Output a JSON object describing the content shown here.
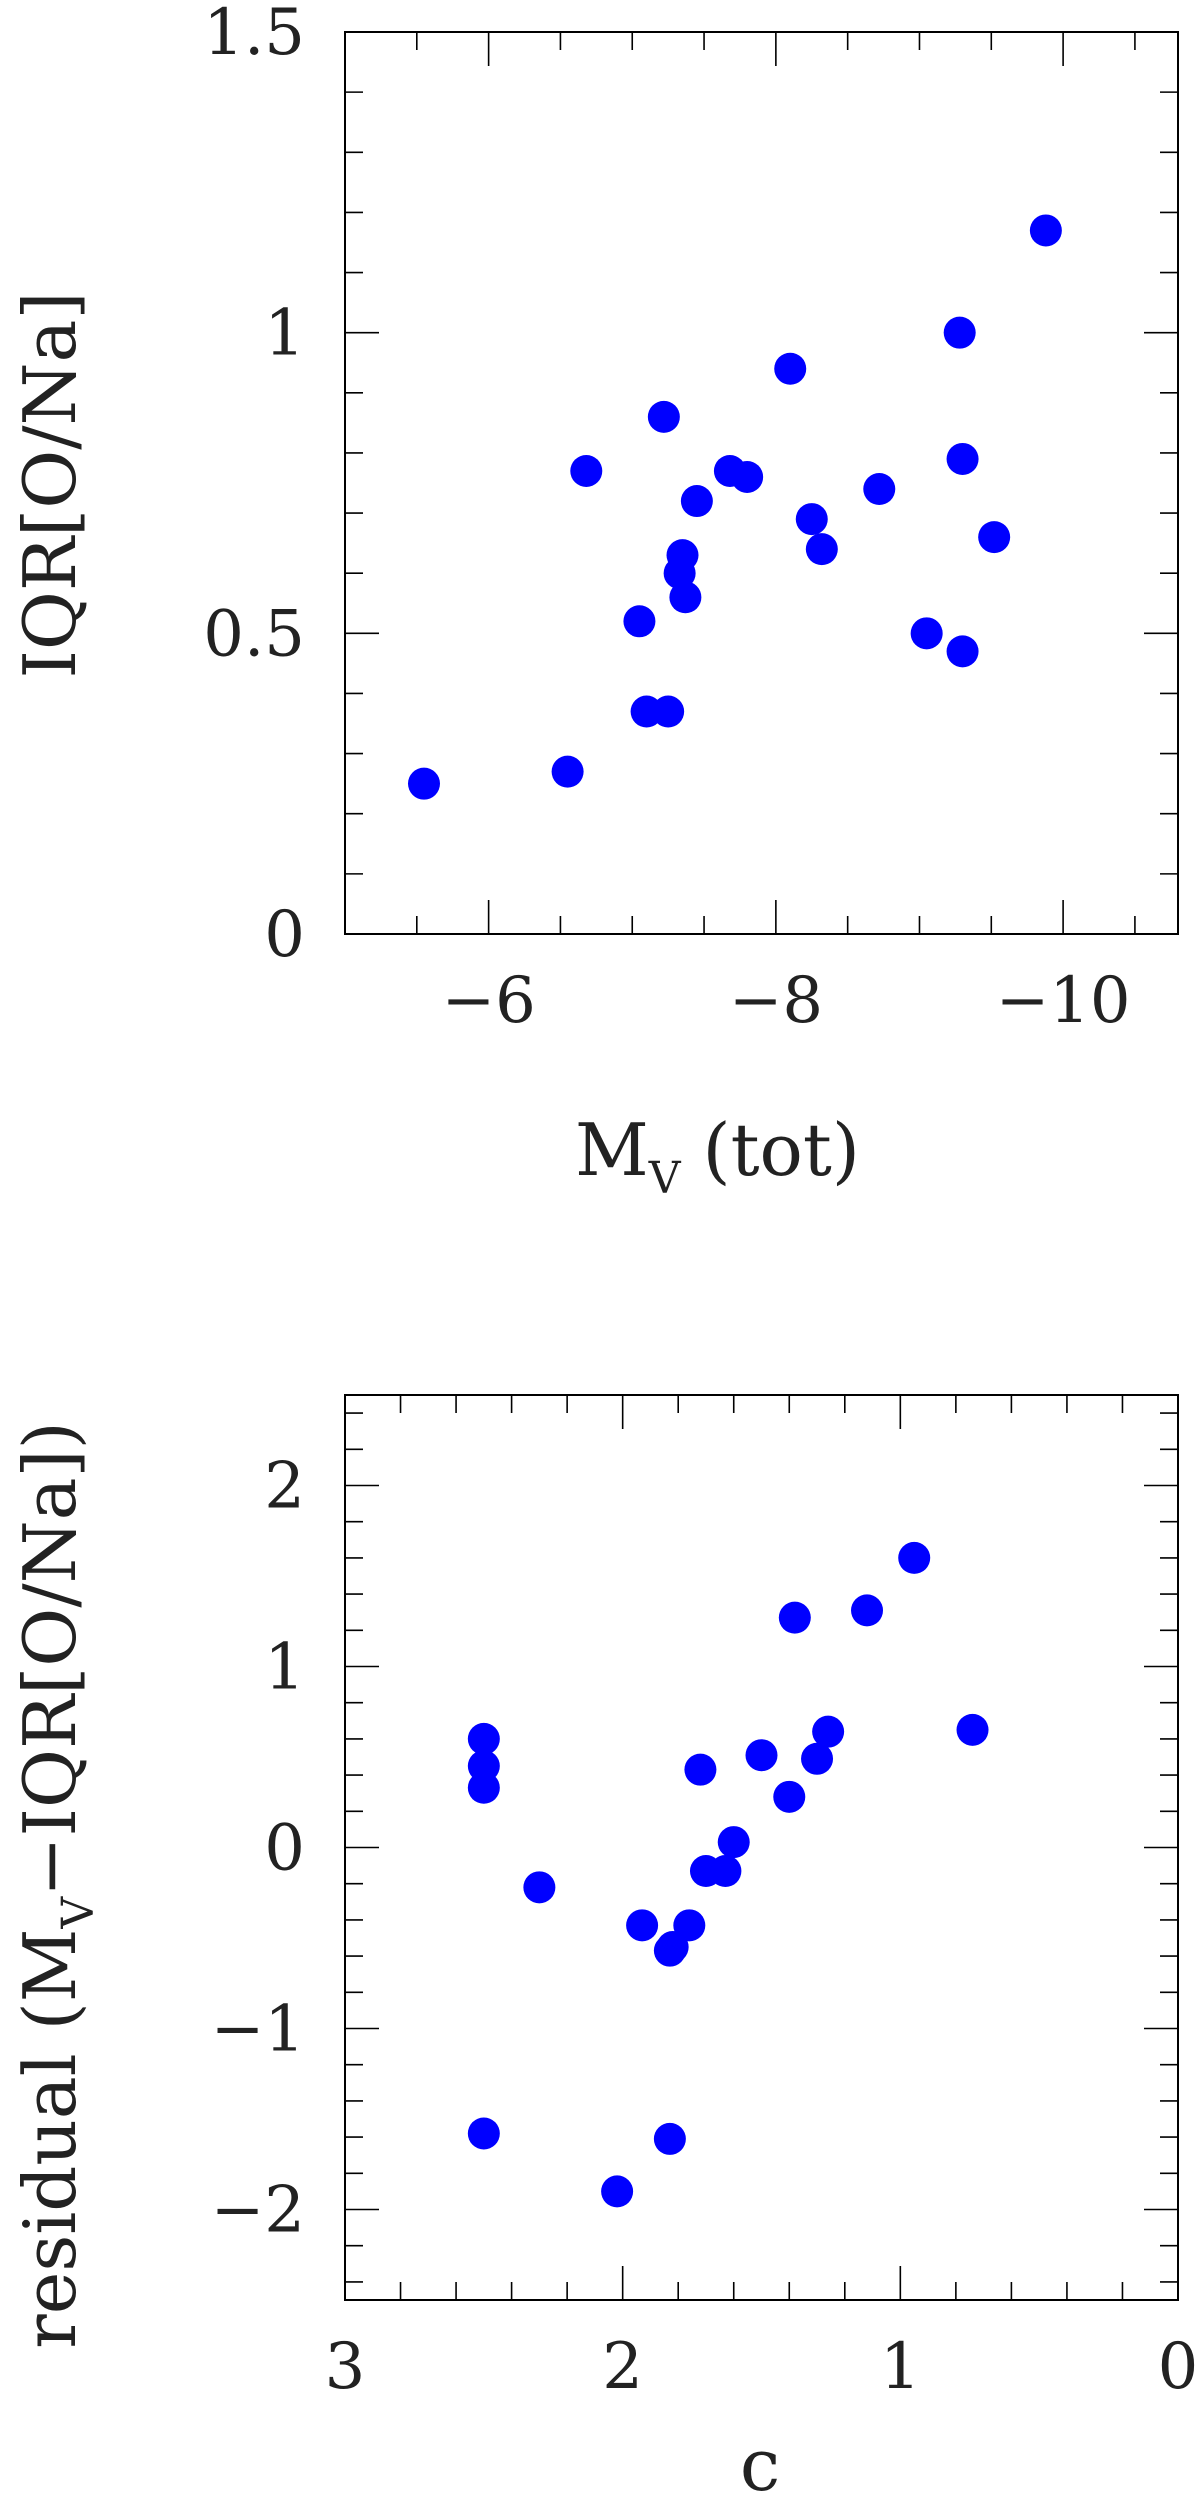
{
  "chart_data": [
    {
      "type": "scatter",
      "xlabel": "M",
      "xlabel_sub": "V",
      "xlabel_suffix": "(tot)",
      "ylabel": "IQR[O/Na]",
      "xlim": [
        -5,
        -10.8
      ],
      "ylim": [
        0,
        1.5
      ],
      "x_ticks": [
        "−6",
        "−8",
        "−10"
      ],
      "x_tick_values": [
        -6,
        -8,
        -10
      ],
      "y_ticks": [
        "0",
        "0.5",
        "1",
        "1.5"
      ],
      "y_tick_values": [
        0,
        0.5,
        1,
        1.5
      ],
      "marker_color": "#0000ff",
      "points": [
        {
          "x": -5.55,
          "y": 0.25
        },
        {
          "x": -6.55,
          "y": 0.27
        },
        {
          "x": -6.68,
          "y": 0.77
        },
        {
          "x": -7.05,
          "y": 0.52
        },
        {
          "x": -7.1,
          "y": 0.37
        },
        {
          "x": -7.25,
          "y": 0.37
        },
        {
          "x": -7.22,
          "y": 0.86
        },
        {
          "x": -7.33,
          "y": 0.6
        },
        {
          "x": -7.35,
          "y": 0.63
        },
        {
          "x": -7.37,
          "y": 0.56
        },
        {
          "x": -7.45,
          "y": 0.72
        },
        {
          "x": -7.68,
          "y": 0.77
        },
        {
          "x": -7.8,
          "y": 0.76
        },
        {
          "x": -8.1,
          "y": 0.94
        },
        {
          "x": -8.25,
          "y": 0.69
        },
        {
          "x": -8.32,
          "y": 0.64
        },
        {
          "x": -8.72,
          "y": 0.74
        },
        {
          "x": -9.05,
          "y": 0.5
        },
        {
          "x": -9.28,
          "y": 1.0
        },
        {
          "x": -9.3,
          "y": 0.79
        },
        {
          "x": -9.3,
          "y": 0.47
        },
        {
          "x": -9.52,
          "y": 0.66
        },
        {
          "x": -9.88,
          "y": 1.17
        }
      ]
    },
    {
      "type": "scatter",
      "xlabel": "c",
      "ylabel_prefix": "residual (M",
      "ylabel_sub": "V",
      "ylabel_suffix": "−IQR[O/Na])",
      "xlim": [
        3,
        0
      ],
      "ylim": [
        -2.5,
        2.5
      ],
      "x_ticks": [
        "3",
        "2",
        "1",
        "0"
      ],
      "x_tick_values": [
        3,
        2,
        1,
        0
      ],
      "y_ticks": [
        "−2",
        "−1",
        "0",
        "1",
        "2"
      ],
      "y_tick_values": [
        -2,
        -1,
        0,
        1,
        2
      ],
      "marker_color": "#0000ff",
      "points": [
        {
          "x": 2.5,
          "y": 0.6
        },
        {
          "x": 2.5,
          "y": 0.45
        },
        {
          "x": 2.5,
          "y": 0.33
        },
        {
          "x": 2.5,
          "y": -1.58
        },
        {
          "x": 2.3,
          "y": -0.22
        },
        {
          "x": 2.02,
          "y": -1.9
        },
        {
          "x": 1.93,
          "y": -0.43
        },
        {
          "x": 1.83,
          "y": -0.57
        },
        {
          "x": 1.82,
          "y": -0.55
        },
        {
          "x": 1.83,
          "y": -1.61
        },
        {
          "x": 1.76,
          "y": -0.43
        },
        {
          "x": 1.72,
          "y": 0.43
        },
        {
          "x": 1.7,
          "y": -0.13
        },
        {
          "x": 1.63,
          "y": -0.13
        },
        {
          "x": 1.6,
          "y": 0.03
        },
        {
          "x": 1.5,
          "y": 0.51
        },
        {
          "x": 1.4,
          "y": 0.28
        },
        {
          "x": 1.38,
          "y": 1.27
        },
        {
          "x": 1.3,
          "y": 0.49
        },
        {
          "x": 1.26,
          "y": 0.64
        },
        {
          "x": 1.12,
          "y": 1.31
        },
        {
          "x": 0.95,
          "y": 1.6
        },
        {
          "x": 0.74,
          "y": 0.65
        }
      ]
    }
  ]
}
